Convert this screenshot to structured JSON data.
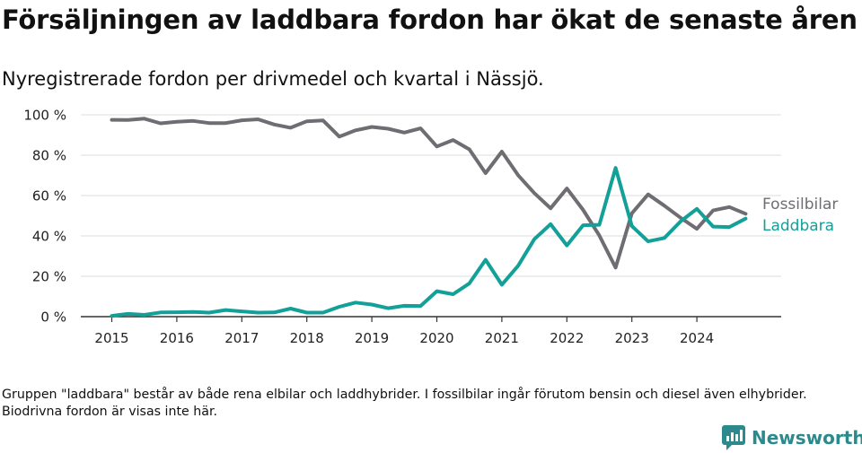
{
  "title": "Försäljningen av laddbara fordon har ökat de senaste åren",
  "subtitle": "Nyregistrerade fordon per drivmedel och kvartal i Nässjö.",
  "note": "Gruppen \"laddbara\" består av både rena elbilar och laddhybrider. I fossilbilar ingår förutom bensin och diesel även elhybrider. Biodrivna fordon är visas inte här.",
  "brand": {
    "name": "Newsworthy",
    "icon": "newsworthy-logo-icon"
  },
  "colors": {
    "fossil": "#6f6c72",
    "laddbara": "#13a099",
    "grid": "#dddddd",
    "axis": "#333333"
  },
  "chart_data": {
    "type": "line",
    "title": "Försäljningen av laddbara fordon har ökat de senaste åren",
    "xlabel": "",
    "ylabel": "",
    "xlim": [
      2015,
      2025
    ],
    "ylim": [
      0,
      100
    ],
    "yticks": [
      0,
      20,
      40,
      60,
      80,
      100
    ],
    "ytick_labels": [
      "0 %",
      "20 %",
      "40 %",
      "60 %",
      "80 %",
      "100 %"
    ],
    "xticks": [
      2015,
      2016,
      2017,
      2018,
      2019,
      2020,
      2021,
      2022,
      2023,
      2024
    ],
    "xtick_labels": [
      "2015",
      "2016",
      "2017",
      "2018",
      "2019",
      "2020",
      "2021",
      "2022",
      "2023",
      "2024"
    ],
    "x_quarters": [
      "2015-Q1",
      "2015-Q2",
      "2015-Q3",
      "2015-Q4",
      "2016-Q1",
      "2016-Q2",
      "2016-Q3",
      "2016-Q4",
      "2017-Q1",
      "2017-Q2",
      "2017-Q3",
      "2017-Q4",
      "2018-Q1",
      "2018-Q2",
      "2018-Q3",
      "2018-Q4",
      "2019-Q1",
      "2019-Q2",
      "2019-Q3",
      "2019-Q4",
      "2020-Q1",
      "2020-Q2",
      "2020-Q3",
      "2020-Q4",
      "2021-Q1",
      "2021-Q2",
      "2021-Q3",
      "2021-Q4",
      "2022-Q1",
      "2022-Q2",
      "2022-Q3",
      "2022-Q4",
      "2023-Q1",
      "2023-Q2",
      "2023-Q3",
      "2023-Q4",
      "2024-Q1",
      "2024-Q2",
      "2024-Q3",
      "2024-Q4"
    ],
    "series": [
      {
        "name": "Fossilbilar",
        "color": "#6f6c72",
        "values": [
          97.5,
          97.4,
          98.1,
          95.8,
          96.6,
          97.0,
          95.9,
          95.9,
          97.3,
          97.8,
          95.2,
          93.6,
          96.8,
          97.2,
          89.2,
          92.3,
          94.0,
          93.1,
          91.2,
          93.3,
          84.3,
          87.5,
          82.9,
          71.1,
          81.8,
          70.1,
          61.2,
          53.7,
          63.5,
          52.9,
          40.2,
          24.3,
          51.2,
          60.6,
          55.0,
          49.0,
          43.5,
          52.6,
          54.3,
          51.0
        ]
      },
      {
        "name": "Laddbara",
        "color": "#13a099",
        "values": [
          0.4,
          1.4,
          0.9,
          2.1,
          2.2,
          2.3,
          2.0,
          3.3,
          2.6,
          2.0,
          2.1,
          4.0,
          2.0,
          2.0,
          4.9,
          7.0,
          6.0,
          4.2,
          5.4,
          5.3,
          12.6,
          11.1,
          16.5,
          28.2,
          15.8,
          25.2,
          38.4,
          45.8,
          35.3,
          45.3,
          45.5,
          73.7,
          44.9,
          37.3,
          39.0,
          47.2,
          53.4,
          44.6,
          44.4,
          48.6
        ]
      }
    ],
    "legend": "right-end labels"
  }
}
